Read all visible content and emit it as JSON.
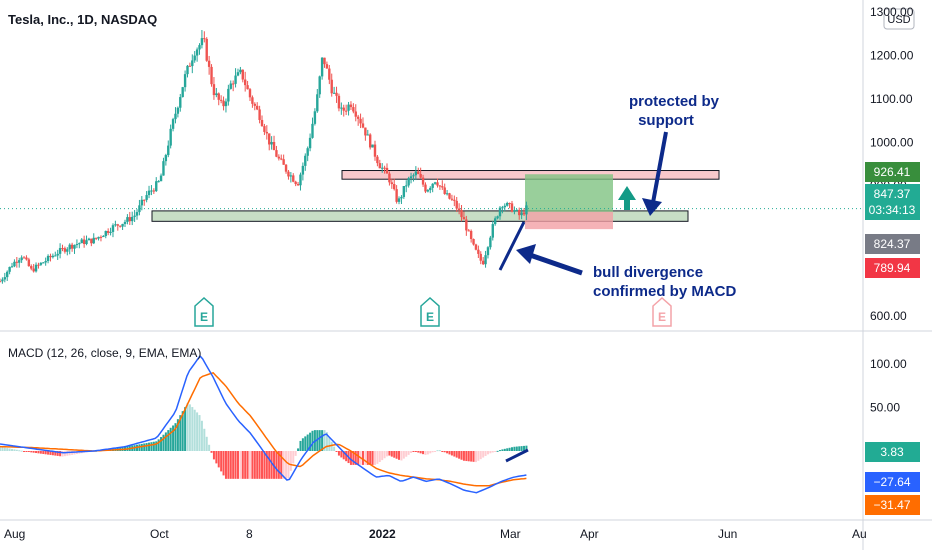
{
  "chart_data": [
    {
      "type": "candlestick",
      "title": "Tesla, Inc., 1D, NASDAQ",
      "currency": "USD",
      "x_ticks": [
        "Aug",
        "Oct",
        "8",
        "2022",
        "Mar",
        "Apr",
        "Jun",
        "Au"
      ],
      "y_ticks": [
        "1300.00",
        "1200.00",
        "1100.00",
        "1000.00",
        "900.00",
        "600.00"
      ],
      "ylim": [
        580,
        1310
      ],
      "price_path": [
        [
          0,
          680
        ],
        [
          0.02,
          720
        ],
        [
          0.035,
          740
        ],
        [
          0.05,
          705
        ],
        [
          0.07,
          725
        ],
        [
          0.09,
          745
        ],
        [
          0.11,
          760
        ],
        [
          0.13,
          770
        ],
        [
          0.15,
          775
        ],
        [
          0.165,
          790
        ],
        [
          0.18,
          805
        ],
        [
          0.2,
          818
        ],
        [
          0.215,
          832
        ],
        [
          0.235,
          880
        ],
        [
          0.255,
          910
        ],
        [
          0.275,
          1040
        ],
        [
          0.295,
          1150
        ],
        [
          0.31,
          1210
        ],
        [
          0.325,
          1235
        ],
        [
          0.34,
          1120
        ],
        [
          0.355,
          1080
        ],
        [
          0.37,
          1140
        ],
        [
          0.385,
          1160
        ],
        [
          0.4,
          1100
        ],
        [
          0.415,
          1060
        ],
        [
          0.43,
          1000
        ],
        [
          0.445,
          960
        ],
        [
          0.46,
          930
        ],
        [
          0.475,
          905
        ],
        [
          0.49,
          980
        ],
        [
          0.505,
          1090
        ],
        [
          0.515,
          1200
        ],
        [
          0.53,
          1120
        ],
        [
          0.545,
          1070
        ],
        [
          0.56,
          1090
        ],
        [
          0.575,
          1050
        ],
        [
          0.59,
          1000
        ],
        [
          0.605,
          950
        ],
        [
          0.62,
          920
        ],
        [
          0.635,
          860
        ],
        [
          0.65,
          910
        ],
        [
          0.665,
          930
        ],
        [
          0.68,
          890
        ],
        [
          0.695,
          915
        ],
        [
          0.71,
          880
        ],
        [
          0.725,
          860
        ],
        [
          0.74,
          820
        ],
        [
          0.755,
          760
        ],
        [
          0.77,
          720
        ],
        [
          0.785,
          800
        ],
        [
          0.8,
          860
        ],
        [
          0.815,
          850
        ],
        [
          0.83,
          830
        ],
        [
          0.84,
          847.37
        ]
      ],
      "price_labels": [
        {
          "value": "926.41",
          "price": 926.41,
          "color": "#388e3c"
        },
        {
          "value": "847.37",
          "sub": "03:34:13",
          "price": 847.37,
          "color": "#22ab94"
        },
        {
          "value": "824.37",
          "price": 824.37,
          "color": "#787b86"
        },
        {
          "value": "789.94",
          "price": 789.94,
          "color": "#f23645"
        }
      ],
      "zones": [
        {
          "name": "resistance",
          "from": 915,
          "to": 935,
          "color": "#f8c9cc"
        },
        {
          "name": "support",
          "from": 818,
          "to": 842,
          "color": "#c8dec6"
        }
      ],
      "position": {
        "entry": 840,
        "target": 926.41,
        "stop": 800
      },
      "earnings_markers": [
        "E",
        "E",
        "E"
      ]
    },
    {
      "type": "line",
      "title": "MACD (12, 26, close, 9, EMA, EMA)",
      "y_ticks": [
        "100.00",
        "50.00"
      ],
      "ylim": [
        -60,
        130
      ],
      "macd": [
        [
          0,
          8
        ],
        [
          0.05,
          3
        ],
        [
          0.1,
          -2
        ],
        [
          0.15,
          0
        ],
        [
          0.2,
          5
        ],
        [
          0.25,
          15
        ],
        [
          0.28,
          45
        ],
        [
          0.3,
          90
        ],
        [
          0.32,
          110
        ],
        [
          0.34,
          85
        ],
        [
          0.36,
          55
        ],
        [
          0.38,
          35
        ],
        [
          0.4,
          20
        ],
        [
          0.42,
          0
        ],
        [
          0.44,
          -20
        ],
        [
          0.46,
          -35
        ],
        [
          0.48,
          -10
        ],
        [
          0.5,
          10
        ],
        [
          0.52,
          20
        ],
        [
          0.54,
          5
        ],
        [
          0.56,
          -10
        ],
        [
          0.58,
          -20
        ],
        [
          0.6,
          -30
        ],
        [
          0.62,
          -28
        ],
        [
          0.64,
          -35
        ],
        [
          0.66,
          -30
        ],
        [
          0.68,
          -35
        ],
        [
          0.7,
          -32
        ],
        [
          0.72,
          -38
        ],
        [
          0.74,
          -45
        ],
        [
          0.76,
          -48
        ],
        [
          0.78,
          -42
        ],
        [
          0.8,
          -35
        ],
        [
          0.82,
          -30
        ],
        [
          0.84,
          -27.64
        ]
      ],
      "signal": [
        [
          0,
          5
        ],
        [
          0.05,
          4
        ],
        [
          0.1,
          2
        ],
        [
          0.15,
          0
        ],
        [
          0.2,
          2
        ],
        [
          0.25,
          8
        ],
        [
          0.28,
          25
        ],
        [
          0.3,
          55
        ],
        [
          0.32,
          85
        ],
        [
          0.34,
          90
        ],
        [
          0.36,
          75
        ],
        [
          0.38,
          55
        ],
        [
          0.4,
          40
        ],
        [
          0.42,
          20
        ],
        [
          0.44,
          0
        ],
        [
          0.46,
          -15
        ],
        [
          0.48,
          -18
        ],
        [
          0.5,
          -5
        ],
        [
          0.52,
          5
        ],
        [
          0.54,
          8
        ],
        [
          0.56,
          0
        ],
        [
          0.58,
          -10
        ],
        [
          0.6,
          -20
        ],
        [
          0.62,
          -25
        ],
        [
          0.64,
          -28
        ],
        [
          0.66,
          -30
        ],
        [
          0.68,
          -32
        ],
        [
          0.7,
          -33
        ],
        [
          0.72,
          -35
        ],
        [
          0.74,
          -38
        ],
        [
          0.76,
          -40
        ],
        [
          0.78,
          -40
        ],
        [
          0.8,
          -36
        ],
        [
          0.82,
          -33
        ],
        [
          0.84,
          -31.47
        ]
      ],
      "macd_labels": [
        {
          "value": "3.83",
          "color": "#22ab94"
        },
        {
          "value": "−27.64",
          "color": "#2962ff"
        },
        {
          "value": "−31.47",
          "color": "#ff6d00"
        }
      ]
    }
  ],
  "annotations": {
    "protected": [
      "protected by",
      "support"
    ],
    "divergence": [
      "bull divergence",
      "confirmed by MACD"
    ]
  },
  "colors": {
    "up": "#26a69a",
    "down": "#ef5350",
    "macd": "#2962ff",
    "signal": "#ff6d00",
    "annotation": "#0d2a8a"
  }
}
